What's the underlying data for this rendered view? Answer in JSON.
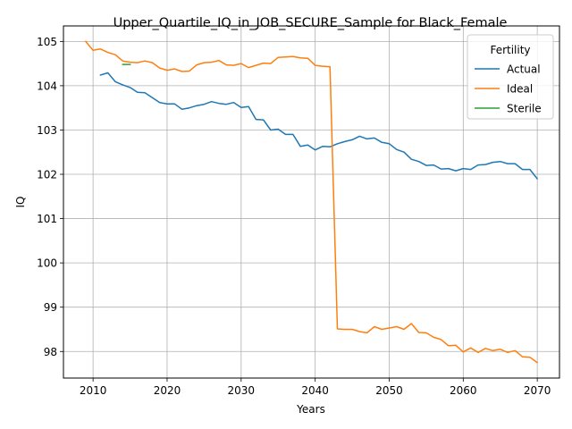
{
  "chart_data": {
    "type": "line",
    "title": "Upper_Quartile_IQ_in_JOB_SECURE_Sample for Black_Female",
    "xlabel": "Years",
    "ylabel": "IQ",
    "xlim": [
      2006,
      2073
    ],
    "ylim": [
      97.4,
      105.35
    ],
    "xticks": [
      2010,
      2020,
      2030,
      2040,
      2050,
      2060,
      2070
    ],
    "yticks": [
      98,
      99,
      100,
      101,
      102,
      103,
      104,
      105
    ],
    "grid": true,
    "legend": {
      "title": "Fertility",
      "placement": "top-right"
    },
    "series": [
      {
        "name": "Actual",
        "color": "#1f77b4",
        "x": [
          2011,
          2012,
          2013,
          2014,
          2015,
          2016,
          2017,
          2018,
          2019,
          2020,
          2021,
          2022,
          2023,
          2024,
          2025,
          2026,
          2027,
          2028,
          2029,
          2030,
          2031,
          2032,
          2033,
          2034,
          2035,
          2036,
          2037,
          2038,
          2039,
          2040,
          2041,
          2042,
          2043,
          2044,
          2045,
          2046,
          2047,
          2048,
          2049,
          2050,
          2051,
          2052,
          2053,
          2054,
          2055,
          2056,
          2057,
          2058,
          2059,
          2060,
          2061,
          2062,
          2063,
          2064,
          2065,
          2066,
          2067,
          2068,
          2069,
          2070
        ],
        "y": [
          104.24,
          104.29,
          104.09,
          104.02,
          103.96,
          103.85,
          103.84,
          103.73,
          103.62,
          103.59,
          103.59,
          103.47,
          103.5,
          103.55,
          103.58,
          103.64,
          103.6,
          103.58,
          103.62,
          103.51,
          103.53,
          103.24,
          103.23,
          103.0,
          103.02,
          102.9,
          102.9,
          102.63,
          102.66,
          102.55,
          102.63,
          102.62,
          102.69,
          102.74,
          102.78,
          102.86,
          102.8,
          102.82,
          102.72,
          102.69,
          102.56,
          102.5,
          102.34,
          102.29,
          102.2,
          102.21,
          102.12,
          102.13,
          102.08,
          102.13,
          102.11,
          102.21,
          102.22,
          102.27,
          102.29,
          102.24,
          102.24,
          102.11,
          102.11,
          101.9
        ]
      },
      {
        "name": "Ideal",
        "color": "#ff7f0e",
        "x": [
          2009,
          2010,
          2011,
          2012,
          2013,
          2014,
          2015,
          2016,
          2017,
          2018,
          2019,
          2020,
          2021,
          2022,
          2023,
          2024,
          2025,
          2026,
          2027,
          2028,
          2029,
          2030,
          2031,
          2032,
          2033,
          2034,
          2035,
          2036,
          2037,
          2038,
          2039,
          2040,
          2041,
          2042,
          2043,
          2044,
          2045,
          2046,
          2047,
          2048,
          2049,
          2050,
          2051,
          2052,
          2053,
          2054,
          2055,
          2056,
          2057,
          2058,
          2059,
          2060,
          2061,
          2062,
          2063,
          2064,
          2065,
          2066,
          2067,
          2068,
          2069,
          2070
        ],
        "y": [
          105.0,
          104.8,
          104.83,
          104.75,
          104.7,
          104.56,
          104.53,
          104.52,
          104.56,
          104.52,
          104.4,
          104.35,
          104.38,
          104.32,
          104.33,
          104.47,
          104.52,
          104.53,
          104.57,
          104.47,
          104.46,
          104.5,
          104.41,
          104.46,
          104.51,
          104.5,
          104.64,
          104.65,
          104.66,
          104.63,
          104.62,
          104.46,
          104.44,
          104.43,
          98.51,
          98.5,
          98.5,
          98.45,
          98.42,
          98.56,
          98.5,
          98.53,
          98.56,
          98.5,
          98.63,
          98.43,
          98.42,
          98.32,
          98.27,
          98.13,
          98.14,
          97.99,
          98.08,
          97.98,
          98.07,
          98.02,
          98.05,
          97.98,
          98.02,
          97.88,
          97.87,
          97.75
        ]
      },
      {
        "name": "Sterile",
        "color": "#2ca02c",
        "x": [
          2014,
          2015
        ],
        "y": [
          104.48,
          104.48
        ]
      }
    ]
  }
}
